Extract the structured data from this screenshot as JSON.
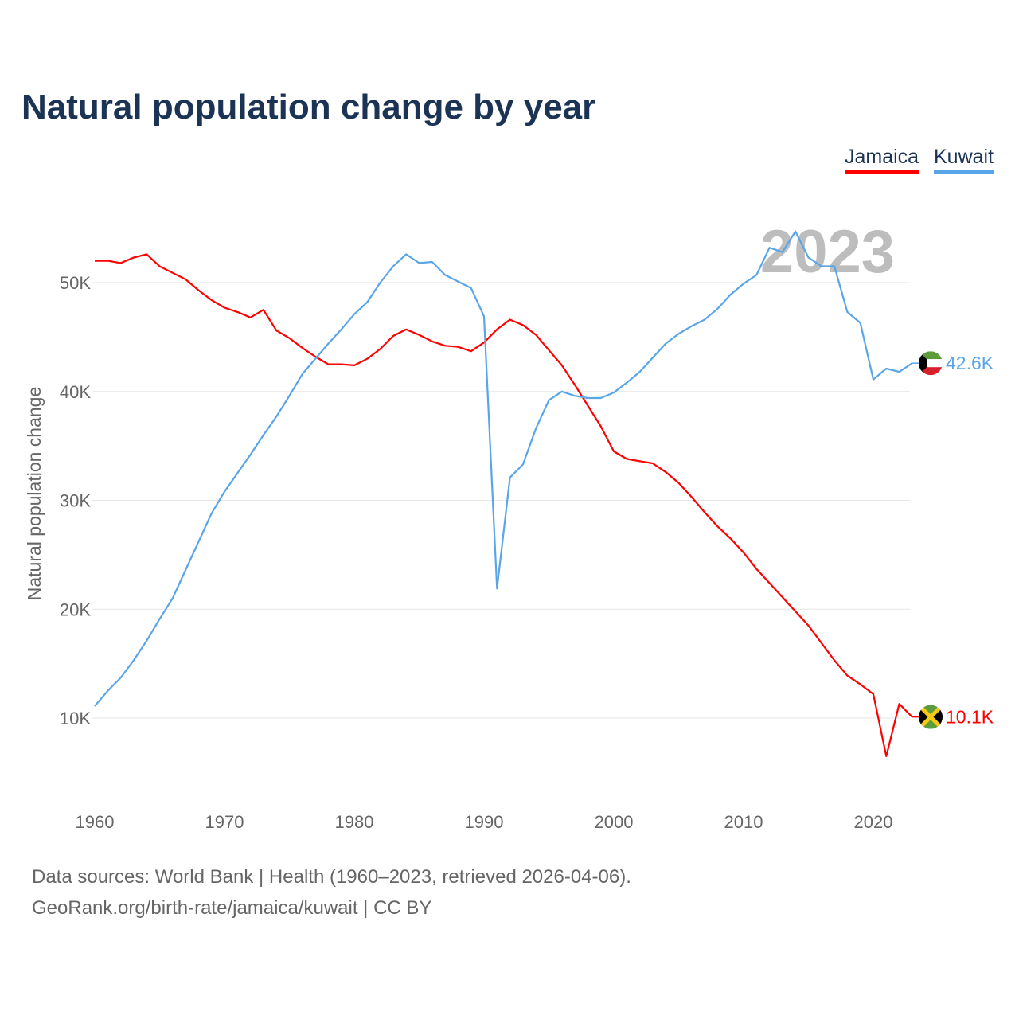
{
  "chart_data": {
    "type": "line",
    "title": "Natural population change by year",
    "xlabel": "",
    "ylabel": "Natural population change",
    "xlim": [
      1960,
      2023
    ],
    "ylim": [
      0,
      55000
    ],
    "x_ticks": [
      "1960",
      "1970",
      "1980",
      "1990",
      "2000",
      "2010",
      "2020"
    ],
    "y_ticks": [
      {
        "v": 10000,
        "label": "10K"
      },
      {
        "v": 20000,
        "label": "20K"
      },
      {
        "v": 30000,
        "label": "30K"
      },
      {
        "v": 40000,
        "label": "40K"
      },
      {
        "v": 50000,
        "label": "50K"
      }
    ],
    "year_watermark": "2023",
    "legend": [
      "Jamaica",
      "Kuwait"
    ],
    "x": [
      1960,
      1961,
      1962,
      1963,
      1964,
      1965,
      1966,
      1967,
      1968,
      1969,
      1970,
      1971,
      1972,
      1973,
      1974,
      1975,
      1976,
      1977,
      1978,
      1979,
      1980,
      1981,
      1982,
      1983,
      1984,
      1985,
      1986,
      1987,
      1988,
      1989,
      1990,
      1991,
      1992,
      1993,
      1994,
      1995,
      1996,
      1997,
      1998,
      1999,
      2000,
      2001,
      2002,
      2003,
      2004,
      2005,
      2006,
      2007,
      2008,
      2009,
      2010,
      2011,
      2012,
      2013,
      2014,
      2015,
      2016,
      2017,
      2018,
      2019,
      2020,
      2021,
      2022,
      2023
    ],
    "series": [
      {
        "name": "Jamaica",
        "color": "#ff0000",
        "end_label": "10.1K",
        "values": [
          52.0,
          52.0,
          51.8,
          52.3,
          52.6,
          51.5,
          50.9,
          50.3,
          49.3,
          48.4,
          47.7,
          47.3,
          46.8,
          47.5,
          45.6,
          44.9,
          44.0,
          43.2,
          42.5,
          42.5,
          42.4,
          43.0,
          43.9,
          45.1,
          45.7,
          45.2,
          44.6,
          44.2,
          44.1,
          43.7,
          44.5,
          45.7,
          46.6,
          46.1,
          45.2,
          43.8,
          42.4,
          40.6,
          38.7,
          36.8,
          34.5,
          33.8,
          33.6,
          33.4,
          32.6,
          31.6,
          30.3,
          28.9,
          27.6,
          26.5,
          25.2,
          23.7,
          22.4,
          21.1,
          19.8,
          18.5,
          16.9,
          15.3,
          13.9,
          13.1,
          12.2,
          6.5,
          11.3,
          10.1
        ]
      },
      {
        "name": "Kuwait",
        "color": "#5aa5e8",
        "end_label": "42.6K",
        "values": [
          11.1,
          12.5,
          13.7,
          15.3,
          17.1,
          19.1,
          21.0,
          23.6,
          26.2,
          28.8,
          30.8,
          32.5,
          34.2,
          36.0,
          37.7,
          39.6,
          41.6,
          43.0,
          44.4,
          45.7,
          47.1,
          48.2,
          50.0,
          51.5,
          52.6,
          51.8,
          51.9,
          50.7,
          50.1,
          49.5,
          46.9,
          21.9,
          32.1,
          33.3,
          36.6,
          39.2,
          40.0,
          39.6,
          39.4,
          39.4,
          39.9,
          40.8,
          41.8,
          43.1,
          44.4,
          45.3,
          46.0,
          46.6,
          47.6,
          48.9,
          49.9,
          50.7,
          53.2,
          52.8,
          54.7,
          52.3,
          51.5,
          51.5,
          47.3,
          46.3,
          41.1,
          42.1,
          41.8,
          42.6
        ]
      }
    ],
    "values_unit": "thousands"
  },
  "source": {
    "line1": "Data sources: World Bank | Health (1960–2023, retrieved 2026-04-06).",
    "line2": "GeoRank.org/birth-rate/jamaica/kuwait | CC BY"
  }
}
